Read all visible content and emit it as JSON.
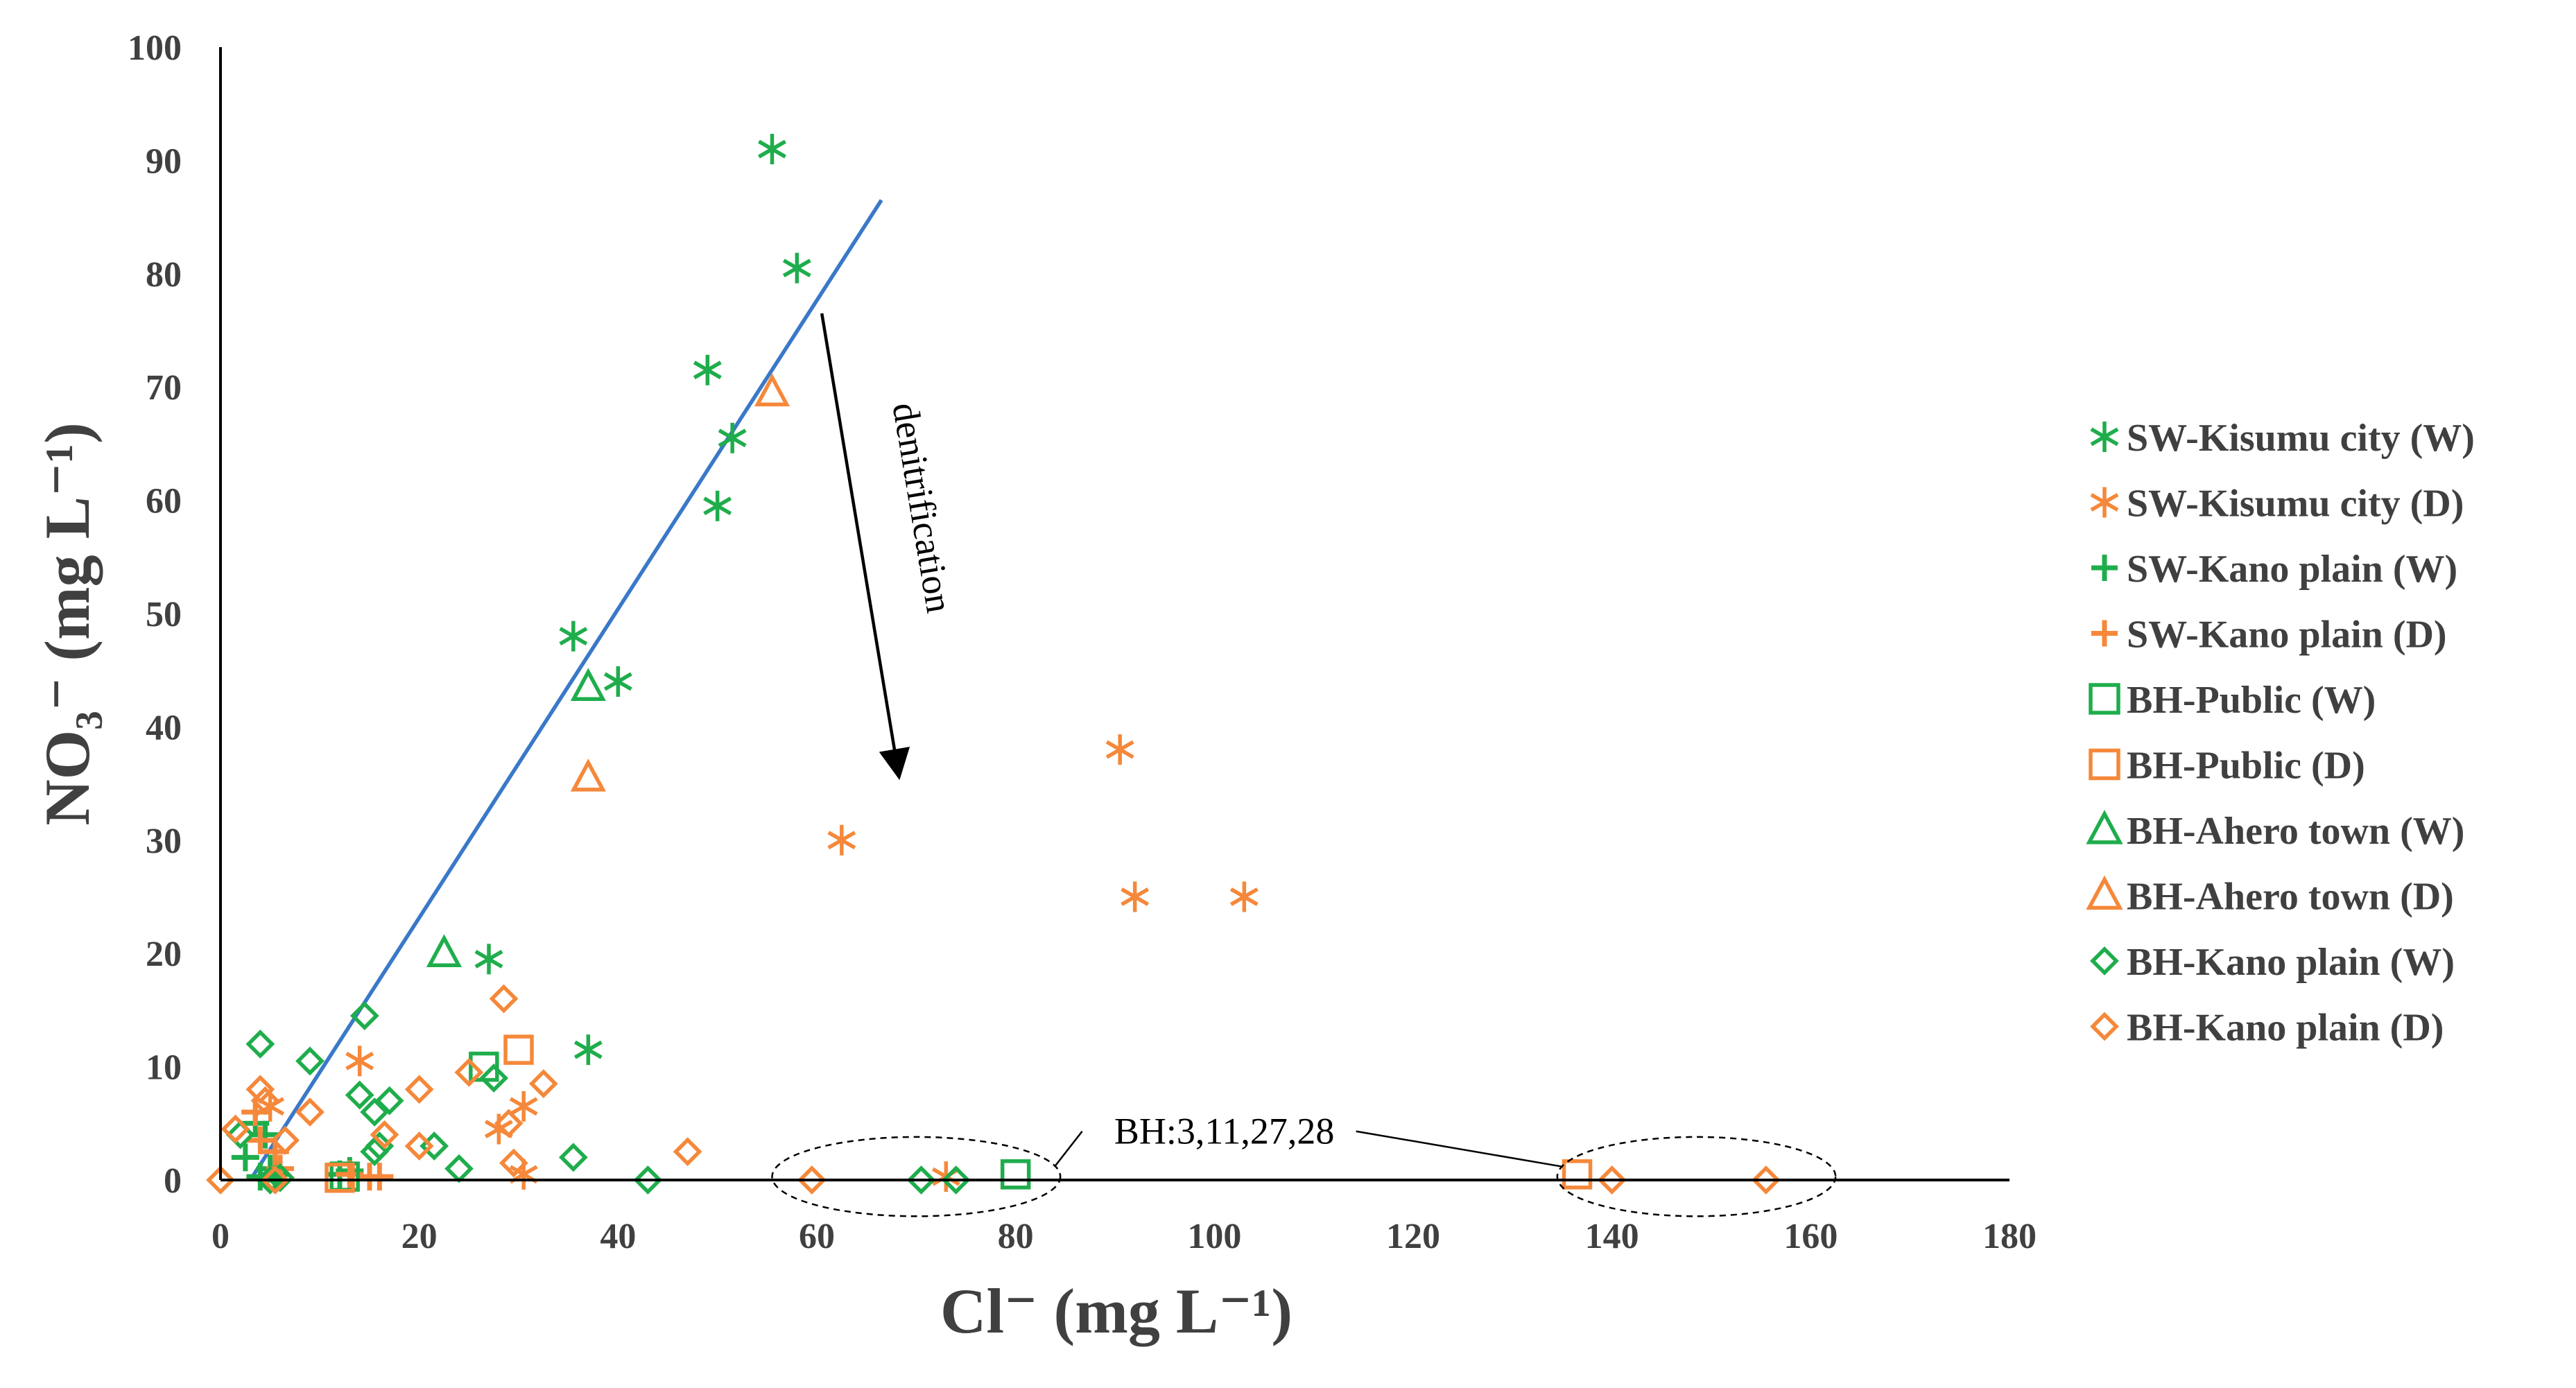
{
  "chart_data": {
    "type": "scatter",
    "title": "",
    "xlabel": "Cl⁻ (mg L⁻¹)",
    "ylabel": "NO₃⁻ (mg L⁻¹)",
    "xlim": [
      0,
      180
    ],
    "ylim": [
      0,
      100
    ],
    "xticks": [
      "0",
      "20",
      "40",
      "60",
      "80",
      "100",
      "120",
      "140",
      "160",
      "180"
    ],
    "yticks": [
      "0",
      "10",
      "20",
      "30",
      "40",
      "50",
      "60",
      "70",
      "80",
      "90",
      "100"
    ],
    "grid": false,
    "legend_position": "right",
    "colors": {
      "green": "#1fad4c",
      "orange": "#f5883a",
      "line": "#3a78c8",
      "axis": "#000000",
      "text": "#404040"
    },
    "series": [
      {
        "name": "SW-Kisumu city (W)",
        "marker": "asterisk",
        "color": "#1fad4c",
        "points": [
          [
            55.5,
            91
          ],
          [
            58,
            80.5
          ],
          [
            49,
            71.5
          ],
          [
            51.5,
            65.5
          ],
          [
            50,
            59.5
          ],
          [
            35.5,
            48
          ],
          [
            40,
            44
          ],
          [
            27,
            19.5
          ],
          [
            37,
            11.5
          ]
        ]
      },
      {
        "name": "SW-Kisumu city (D)",
        "marker": "asterisk",
        "color": "#f5883a",
        "points": [
          [
            90.5,
            38
          ],
          [
            62.5,
            30
          ],
          [
            92,
            25
          ],
          [
            103,
            25
          ],
          [
            14,
            10.5
          ],
          [
            5,
            6.5
          ],
          [
            30.5,
            6.5
          ],
          [
            28,
            4.5
          ],
          [
            30.5,
            0.5
          ],
          [
            73,
            0.3
          ]
        ]
      },
      {
        "name": "SW-Kano plain (W)",
        "marker": "plus",
        "color": "#1fad4c",
        "points": [
          [
            3.5,
            5
          ],
          [
            4.5,
            4
          ],
          [
            2.5,
            2
          ],
          [
            5,
            1
          ],
          [
            5.5,
            0.5
          ],
          [
            4,
            0.3
          ],
          [
            12,
            0.5
          ],
          [
            13,
            0.8
          ]
        ]
      },
      {
        "name": "SW-Kano plain (D)",
        "marker": "plus",
        "color": "#f5883a",
        "points": [
          [
            3.5,
            6
          ],
          [
            4,
            3.5
          ],
          [
            5.5,
            2.5
          ],
          [
            6,
            1
          ],
          [
            15,
            0.3
          ],
          [
            16,
            0.3
          ],
          [
            13,
            0.5
          ]
        ]
      },
      {
        "name": "BH-Public (W)",
        "marker": "square",
        "color": "#1fad4c",
        "points": [
          [
            26.5,
            10
          ],
          [
            80,
            0.5
          ],
          [
            12.5,
            0.3
          ]
        ]
      },
      {
        "name": "BH-Public (D)",
        "marker": "square",
        "color": "#f5883a",
        "points": [
          [
            30,
            11.5
          ],
          [
            136.5,
            0.5
          ],
          [
            12,
            0.2
          ]
        ]
      },
      {
        "name": "BH-Ahero town (W)",
        "marker": "triangle",
        "color": "#1fad4c",
        "points": [
          [
            37,
            43.5
          ],
          [
            22.5,
            20
          ]
        ]
      },
      {
        "name": "BH-Ahero town (D)",
        "marker": "triangle",
        "color": "#f5883a",
        "points": [
          [
            55.5,
            69.5
          ],
          [
            37,
            35.5
          ]
        ]
      },
      {
        "name": "BH-Kano plain (W)",
        "marker": "diamond",
        "color": "#1fad4c",
        "points": [
          [
            4,
            12
          ],
          [
            9,
            10.5
          ],
          [
            14.5,
            14.5
          ],
          [
            14,
            7.5
          ],
          [
            17,
            7
          ],
          [
            15.5,
            6
          ],
          [
            27.5,
            9
          ],
          [
            2,
            4
          ],
          [
            16,
            3
          ],
          [
            21.5,
            3
          ],
          [
            15.5,
            2.5
          ],
          [
            24,
            1
          ],
          [
            35.5,
            2
          ],
          [
            43,
            0
          ],
          [
            70.5,
            0
          ],
          [
            74,
            0
          ],
          [
            5,
            0
          ],
          [
            6,
            0.2
          ]
        ]
      },
      {
        "name": "BH-Kano plain (D)",
        "marker": "diamond",
        "color": "#f5883a",
        "points": [
          [
            28.5,
            16
          ],
          [
            20,
            8
          ],
          [
            25,
            9.5
          ],
          [
            32.5,
            8.5
          ],
          [
            4,
            8
          ],
          [
            4.5,
            7
          ],
          [
            9,
            6
          ],
          [
            1.5,
            4.5
          ],
          [
            6.5,
            3.5
          ],
          [
            16.5,
            4
          ],
          [
            20,
            3
          ],
          [
            29,
            5
          ],
          [
            47,
            2.5
          ],
          [
            29.5,
            1.5
          ],
          [
            0,
            0
          ],
          [
            5.5,
            0
          ],
          [
            59.5,
            0
          ],
          [
            140,
            0
          ],
          [
            155.5,
            0
          ]
        ]
      }
    ],
    "trendline": {
      "from": [
        3,
        0
      ],
      "to": [
        66.5,
        86.5
      ]
    },
    "annotations": {
      "denitrification": "denitrification",
      "arrow_from": [
        60.5,
        76.5
      ],
      "arrow_to": [
        68.5,
        34.5
      ],
      "bh_label": "BH:3,11,27,28",
      "bh_label_anchor": [
        101,
        3.2
      ],
      "ellipses": [
        {
          "center": [
            70,
            0.3
          ],
          "rx": 14.5,
          "ry": 3.5
        },
        {
          "center": [
            148.5,
            0.3
          ],
          "rx": 14,
          "ry": 3.5
        }
      ]
    }
  }
}
